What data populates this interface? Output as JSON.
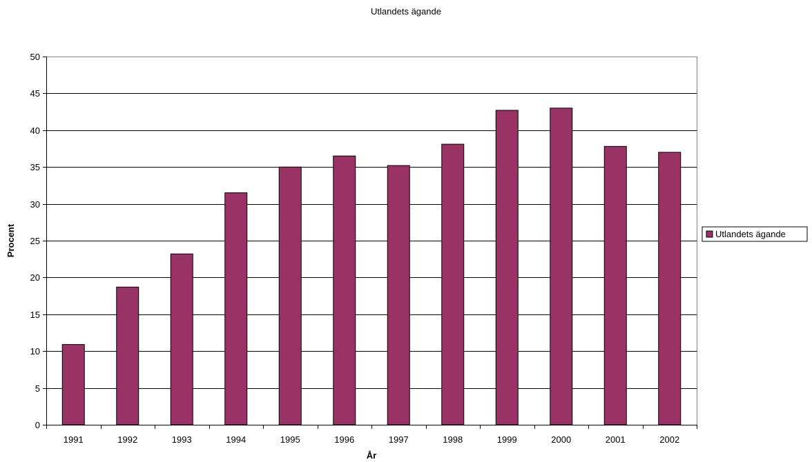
{
  "chart_data": {
    "type": "bar",
    "title": "Utlandets ägande",
    "xlabel": "År",
    "ylabel": "Procent",
    "categories": [
      "1991",
      "1992",
      "1993",
      "1994",
      "1995",
      "1996",
      "1997",
      "1998",
      "1999",
      "2000",
      "2001",
      "2002"
    ],
    "series": [
      {
        "name": "Utlandets ägande",
        "color": "#993366",
        "values": [
          10.9,
          18.7,
          23.2,
          31.5,
          35.0,
          36.5,
          35.2,
          38.1,
          42.7,
          43.0,
          37.8,
          37.0
        ]
      }
    ],
    "ylim": [
      0,
      50
    ],
    "yticks": [
      0,
      5,
      10,
      15,
      20,
      25,
      30,
      35,
      40,
      45,
      50
    ],
    "grid": true,
    "legend_position": "right"
  }
}
